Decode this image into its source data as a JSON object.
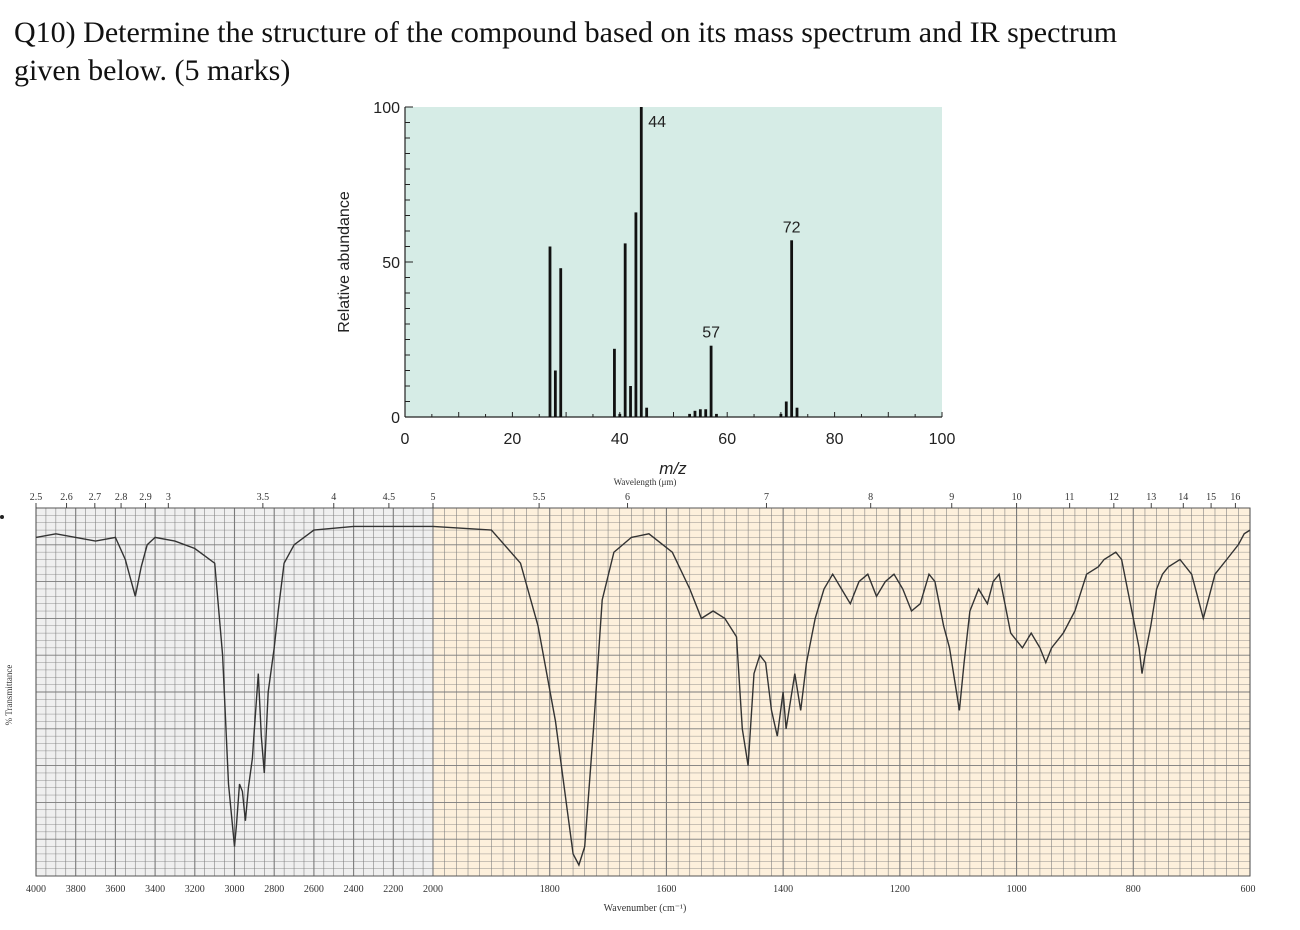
{
  "question": {
    "line1": "Q10) Determine the structure of the compound based on its mass spectrum and IR spectrum",
    "line2": "given below. (5 marks)"
  },
  "chart_data": [
    {
      "type": "bar",
      "title": "",
      "xlabel": "m/z",
      "ylabel": "Relative abundance",
      "xlim": [
        0,
        100
      ],
      "ylim": [
        0,
        100
      ],
      "x_ticks": [
        0,
        20,
        40,
        60,
        80,
        100
      ],
      "y_ticks": [
        0,
        50,
        100
      ],
      "background_color": "#d6ece6",
      "bar_color": "#111111",
      "peaks": [
        {
          "mz": 27,
          "value": 55
        },
        {
          "mz": 28,
          "value": 15
        },
        {
          "mz": 29,
          "value": 48
        },
        {
          "mz": 39,
          "value": 22
        },
        {
          "mz": 40,
          "value": 1
        },
        {
          "mz": 41,
          "value": 56
        },
        {
          "mz": 42,
          "value": 10
        },
        {
          "mz": 43,
          "value": 66
        },
        {
          "mz": 44,
          "value": 100
        },
        {
          "mz": 45,
          "value": 3
        },
        {
          "mz": 53,
          "value": 1
        },
        {
          "mz": 54,
          "value": 2
        },
        {
          "mz": 55,
          "value": 2.5
        },
        {
          "mz": 56,
          "value": 2.5
        },
        {
          "mz": 57,
          "value": 23
        },
        {
          "mz": 58,
          "value": 1
        },
        {
          "mz": 70,
          "value": 1
        },
        {
          "mz": 71,
          "value": 5
        },
        {
          "mz": 72,
          "value": 57
        },
        {
          "mz": 73,
          "value": 3
        }
      ],
      "peak_labels": [
        {
          "mz": 44,
          "text": "44"
        },
        {
          "mz": 57,
          "text": "57"
        },
        {
          "mz": 72,
          "text": "72"
        }
      ]
    },
    {
      "type": "line",
      "title": "",
      "xlabel": "Wavenumber (cm⁻¹)",
      "x2label": "Wavelength (μm)",
      "ylabel": "% Transmittance",
      "grid": true,
      "background_left": "#efefef",
      "background_right": "#fdf0dc",
      "grid_color": "#7a7a7a",
      "line_color": "#333333",
      "wavenumber_ticks": [
        "4000",
        "3800",
        "3600",
        "3400",
        "3200",
        "3000",
        "2800",
        "2600",
        "2400",
        "2200",
        "2000",
        "1800",
        "1600",
        "1400",
        "1200",
        "1000",
        "800",
        "600"
      ],
      "wavelength_ticks": [
        "2.5",
        "2.6",
        "2.7",
        "2.8",
        "2.9",
        "3",
        "3.5",
        "4",
        "4.5",
        "5",
        "5.5",
        "6",
        "7",
        "8",
        "9",
        "10",
        "11",
        "12",
        "13",
        "14",
        "15",
        "16"
      ],
      "series": [
        {
          "values": [
            [
              4000,
              92
            ],
            [
              3900,
              93
            ],
            [
              3800,
              92
            ],
            [
              3700,
              91
            ],
            [
              3600,
              92
            ],
            [
              3550,
              86
            ],
            [
              3500,
              76
            ],
            [
              3470,
              84
            ],
            [
              3440,
              90
            ],
            [
              3400,
              92
            ],
            [
              3300,
              91
            ],
            [
              3200,
              89
            ],
            [
              3100,
              85
            ],
            [
              3060,
              60
            ],
            [
              3030,
              25
            ],
            [
              3000,
              8
            ],
            [
              2990,
              14
            ],
            [
              2975,
              25
            ],
            [
              2960,
              23
            ],
            [
              2945,
              15
            ],
            [
              2930,
              24
            ],
            [
              2910,
              32
            ],
            [
              2900,
              40
            ],
            [
              2880,
              55
            ],
            [
              2865,
              38
            ],
            [
              2850,
              28
            ],
            [
              2830,
              50
            ],
            [
              2815,
              56
            ],
            [
              2800,
              62
            ],
            [
              2780,
              72
            ],
            [
              2750,
              85
            ],
            [
              2700,
              90
            ],
            [
              2600,
              94
            ],
            [
              2400,
              95
            ],
            [
              2200,
              95
            ],
            [
              2000,
              95
            ],
            [
              1900,
              94
            ],
            [
              1850,
              85
            ],
            [
              1820,
              68
            ],
            [
              1790,
              42
            ],
            [
              1770,
              18
            ],
            [
              1760,
              6
            ],
            [
              1750,
              3
            ],
            [
              1740,
              8
            ],
            [
              1725,
              40
            ],
            [
              1710,
              75
            ],
            [
              1690,
              88
            ],
            [
              1660,
              92
            ],
            [
              1630,
              93
            ],
            [
              1590,
              88
            ],
            [
              1560,
              78
            ],
            [
              1540,
              70
            ],
            [
              1520,
              72
            ],
            [
              1500,
              70
            ],
            [
              1480,
              65
            ],
            [
              1470,
              40
            ],
            [
              1460,
              30
            ],
            [
              1450,
              55
            ],
            [
              1440,
              60
            ],
            [
              1430,
              58
            ],
            [
              1420,
              45
            ],
            [
              1410,
              38
            ],
            [
              1400,
              50
            ],
            [
              1395,
              40
            ],
            [
              1380,
              55
            ],
            [
              1370,
              45
            ],
            [
              1360,
              58
            ],
            [
              1345,
              70
            ],
            [
              1330,
              78
            ],
            [
              1315,
              82
            ],
            [
              1300,
              78
            ],
            [
              1285,
              74
            ],
            [
              1270,
              80
            ],
            [
              1255,
              82
            ],
            [
              1240,
              76
            ],
            [
              1225,
              80
            ],
            [
              1210,
              82
            ],
            [
              1195,
              78
            ],
            [
              1180,
              72
            ],
            [
              1165,
              74
            ],
            [
              1150,
              82
            ],
            [
              1140,
              80
            ],
            [
              1125,
              68
            ],
            [
              1115,
              62
            ],
            [
              1105,
              52
            ],
            [
              1098,
              45
            ],
            [
              1090,
              58
            ],
            [
              1080,
              72
            ],
            [
              1065,
              78
            ],
            [
              1050,
              74
            ],
            [
              1040,
              80
            ],
            [
              1030,
              82
            ],
            [
              1010,
              66
            ],
            [
              990,
              62
            ],
            [
              975,
              66
            ],
            [
              960,
              62
            ],
            [
              950,
              58
            ],
            [
              940,
              62
            ],
            [
              920,
              66
            ],
            [
              900,
              72
            ],
            [
              880,
              82
            ],
            [
              860,
              84
            ],
            [
              850,
              86
            ],
            [
              830,
              88
            ],
            [
              820,
              86
            ],
            [
              800,
              70
            ],
            [
              790,
              62
            ],
            [
              785,
              55
            ],
            [
              780,
              60
            ],
            [
              770,
              68
            ],
            [
              760,
              78
            ],
            [
              750,
              82
            ],
            [
              740,
              84
            ],
            [
              720,
              86
            ],
            [
              700,
              82
            ],
            [
              690,
              76
            ],
            [
              680,
              70
            ],
            [
              670,
              76
            ],
            [
              660,
              82
            ],
            [
              640,
              86
            ],
            [
              620,
              90
            ],
            [
              610,
              93
            ],
            [
              600,
              94
            ]
          ]
        }
      ]
    }
  ]
}
